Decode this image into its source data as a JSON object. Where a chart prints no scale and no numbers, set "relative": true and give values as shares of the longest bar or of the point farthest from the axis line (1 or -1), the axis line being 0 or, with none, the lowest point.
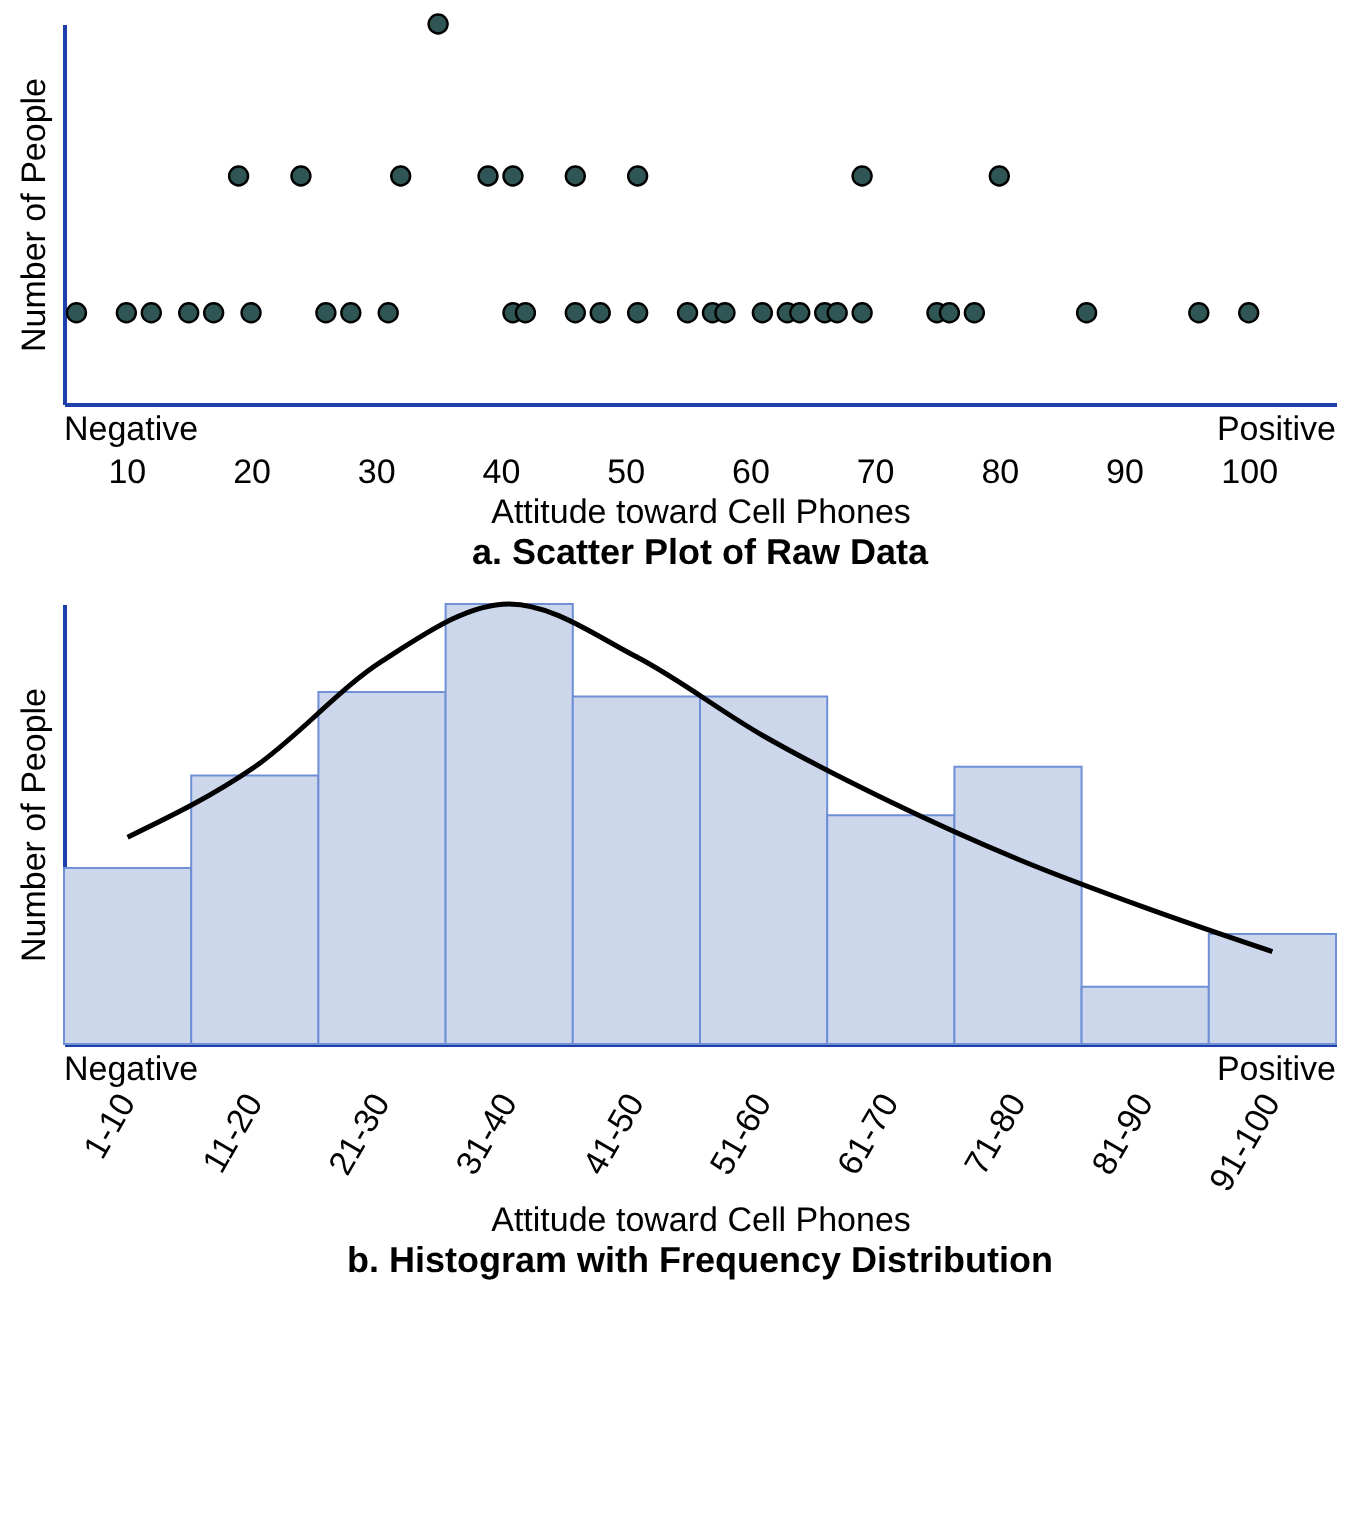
{
  "chart_data": [
    {
      "type": "scatter",
      "title": "a. Scatter Plot of Raw Data",
      "xlabel": "Attitude toward Cell Phones",
      "ylabel": "Number of People",
      "annotations": [
        "Negative",
        "Positive"
      ],
      "relative": true,
      "xlim": [
        5,
        107
      ],
      "xticks": [
        10,
        20,
        30,
        40,
        50,
        60,
        70,
        80,
        90,
        100
      ],
      "series": [
        {
          "color": "#2f5654",
          "x": [
            6,
            10,
            12,
            15,
            17,
            20,
            26,
            28,
            31,
            41,
            42,
            46,
            48,
            51,
            55,
            57,
            58,
            61,
            63,
            64,
            66,
            67,
            69,
            75,
            76,
            78,
            87,
            96,
            100,
            19,
            24,
            32,
            39,
            41,
            46,
            51,
            69,
            80,
            35
          ],
          "values": [
            0.24,
            0.24,
            0.24,
            0.24,
            0.24,
            0.24,
            0.24,
            0.24,
            0.24,
            0.24,
            0.24,
            0.24,
            0.24,
            0.24,
            0.24,
            0.24,
            0.24,
            0.24,
            0.24,
            0.24,
            0.24,
            0.24,
            0.24,
            0.24,
            0.24,
            0.24,
            0.24,
            0.24,
            0.24,
            0.6,
            0.6,
            0.6,
            0.6,
            0.6,
            0.6,
            0.6,
            0.6,
            0.6,
            1
          ]
        }
      ]
    },
    {
      "type": "bar",
      "title": "b. Histogram with Frequency Distribution",
      "xlabel": "Attitude toward Cell Phones",
      "ylabel": "Number of People",
      "annotations": [
        "Negative",
        "Positive"
      ],
      "relative": true,
      "categories": [
        "1-10",
        "11-20",
        "21-30",
        "31-40",
        "41-50",
        "51-60",
        "61-70",
        "71-80",
        "81-90",
        "91-100"
      ],
      "series": [
        {
          "color": "#cdd7ec",
          "values": [
            0.4,
            0.61,
            0.8,
            1,
            0.79,
            0.79,
            0.52,
            0.63,
            0.13,
            0.25
          ]
        },
        {
          "type": "line",
          "color": "#000000",
          "x": [
            "1-10",
            "11-20",
            "21-30",
            "31-40",
            "41-50",
            "51-60",
            "61-70",
            "71-80",
            "81-90",
            "91-100"
          ],
          "values": [
            0.47,
            0.63,
            0.87,
            1,
            0.88,
            0.7,
            0.55,
            0.42,
            0.31,
            0.21
          ]
        }
      ]
    }
  ]
}
